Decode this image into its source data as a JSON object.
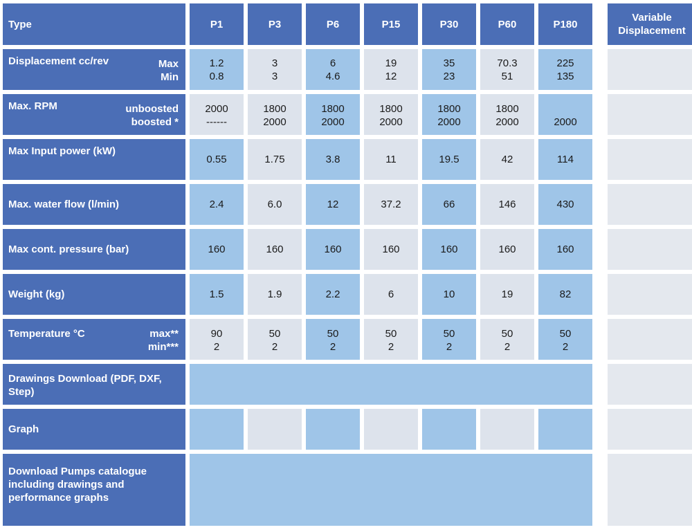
{
  "header": {
    "type": "Type",
    "columns": [
      "P1",
      "P3",
      "P6",
      "P15",
      "P30",
      "P60",
      "P180"
    ],
    "variable_line1": "Variable",
    "variable_line2": "Displacement"
  },
  "rows": {
    "displacement": {
      "label": "Displacement cc/rev",
      "sub1": "Max",
      "sub2": "Min",
      "max": [
        "1.2",
        "3",
        "6",
        "19",
        "35",
        "70.3",
        "225"
      ],
      "min": [
        "0.8",
        "3",
        "4.6",
        "12",
        "23",
        "51",
        "135"
      ]
    },
    "rpm": {
      "label": "Max. RPM",
      "sub1": "unboosted",
      "sub2": "boosted *",
      "unboosted": [
        "2000",
        "1800",
        "1800",
        "1800",
        "1800",
        "1800",
        ""
      ],
      "boosted": [
        "------",
        "2000",
        "2000",
        "2000",
        "2000",
        "2000",
        "2000"
      ]
    },
    "power": {
      "label": "Max Input power (kW)",
      "values": [
        "0.55",
        "1.75",
        "3.8",
        "11",
        "19.5",
        "42",
        "114"
      ]
    },
    "flow": {
      "label": "Max. water flow (l/min)",
      "values": [
        "2.4",
        "6.0",
        "12",
        "37.2",
        "66",
        "146",
        "430"
      ]
    },
    "pressure": {
      "label": "Max cont. pressure (bar)",
      "values": [
        "160",
        "160",
        "160",
        "160",
        "160",
        "160",
        "160"
      ]
    },
    "weight": {
      "label": "Weight (kg)",
      "values": [
        "1.5",
        "1.9",
        "2.2",
        "6",
        "10",
        "19",
        "82"
      ]
    },
    "temperature": {
      "label": "Temperature °C",
      "sub1": "max**",
      "sub2": "min***",
      "max": [
        "90",
        "50",
        "50",
        "50",
        "50",
        "50",
        "50"
      ],
      "min": [
        "2",
        "2",
        "2",
        "2",
        "2",
        "2",
        "2"
      ]
    },
    "drawings": {
      "label_line1": "Drawings Download (PDF, DXF,",
      "label_line2": "Step)"
    },
    "graph": {
      "label": "Graph"
    },
    "catalogue": {
      "label_line1": "Download Pumps catalogue",
      "label_line2": "including drawings and",
      "label_line3": "performance graphs"
    }
  },
  "colors": {
    "header_blue": "#4b6eb6",
    "cell_light_blue": "#9fc5e8",
    "cell_grey": "#dde3ec"
  }
}
